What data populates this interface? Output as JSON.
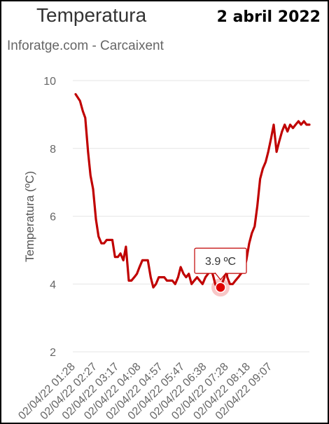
{
  "header": {
    "title": "Temperatura",
    "date": "2 abril 2022",
    "subtitle": "Inforatge.com - Carcaixent"
  },
  "colors": {
    "line": "#c00000",
    "marker": "#e00000",
    "grid": "#e6e6e6",
    "text": "#666666"
  },
  "chart_data": {
    "type": "line",
    "title": "Temperatura",
    "subtitle": "Inforatge.com - Carcaixent",
    "ylabel": "Temperatura (ºC)",
    "ylim": [
      2,
      10
    ],
    "yticks": [
      2,
      4,
      6,
      8,
      10
    ],
    "xticks": [
      "02/04/22 01:28",
      "02/04/22 02:27",
      "02/04/22 03:17",
      "02/04/22 04:08",
      "02/04/22 04:57",
      "02/04/22 05:47",
      "02/04/22 06:38",
      "02/04/22 07:28",
      "02/04/22 08:18",
      "02/04/22 09:07"
    ],
    "grid": true,
    "legend": "none",
    "series": [
      {
        "x": [
          0,
          0.2,
          0.33,
          0.44,
          0.57,
          0.68,
          0.8,
          0.93,
          1.05,
          1.18,
          1.3,
          1.42,
          1.55,
          1.68,
          1.8,
          1.93,
          2.05,
          2.18,
          2.3,
          2.43,
          2.55,
          2.68,
          2.8,
          2.92,
          3.05,
          3.18,
          3.3,
          3.43,
          3.55,
          3.67,
          3.8,
          3.93,
          4.05,
          4.17,
          4.3,
          4.42,
          4.55,
          4.68,
          4.8,
          4.93,
          5.05,
          5.17,
          5.3,
          5.42,
          5.55,
          5.67,
          5.8,
          5.93,
          6.05,
          6.17,
          6.3,
          6.38,
          6.46,
          6.55,
          6.68,
          6.8,
          6.85,
          6.93,
          7.05,
          7.18,
          7.3,
          7.43,
          7.55,
          7.68,
          7.8,
          7.93,
          8.05,
          8.18,
          8.3,
          8.43,
          8.55,
          8.68,
          8.8,
          8.93,
          9.05,
          9.18,
          9.3,
          9.43,
          9.55,
          9.68,
          9.8,
          9.93,
          10.05,
          10.18,
          10.3,
          10.43,
          10.55,
          10.68
        ],
        "y": [
          9.6,
          9.4,
          9.1,
          8.9,
          7.9,
          7.2,
          6.8,
          5.9,
          5.4,
          5.2,
          5.2,
          5.3,
          5.3,
          5.3,
          4.8,
          4.8,
          4.9,
          4.7,
          5.1,
          4.1,
          4.1,
          4.2,
          4.3,
          4.5,
          4.7,
          4.7,
          4.7,
          4.2,
          3.9,
          4.0,
          4.2,
          4.2,
          4.2,
          4.1,
          4.1,
          4.1,
          4.0,
          4.2,
          4.5,
          4.3,
          4.2,
          4.3,
          4.0,
          4.1,
          4.2,
          4.1,
          4.0,
          4.2,
          4.3,
          4.5,
          4.2,
          4.0,
          3.9,
          3.9,
          4.0,
          4.2,
          4.6,
          4.2,
          4.0,
          4.0,
          4.1,
          4.2,
          4.3,
          4.4,
          4.7,
          5.2,
          5.5,
          5.7,
          6.3,
          7.1,
          7.4,
          7.6,
          7.9,
          8.3,
          8.7,
          7.9,
          8.2,
          8.5,
          8.7,
          8.5,
          8.7,
          8.6,
          8.7,
          8.8,
          8.7,
          8.8,
          8.7,
          8.7
        ]
      }
    ],
    "tooltip": {
      "label": "3.9 ºC",
      "x": 6.62,
      "y": 3.9
    }
  }
}
